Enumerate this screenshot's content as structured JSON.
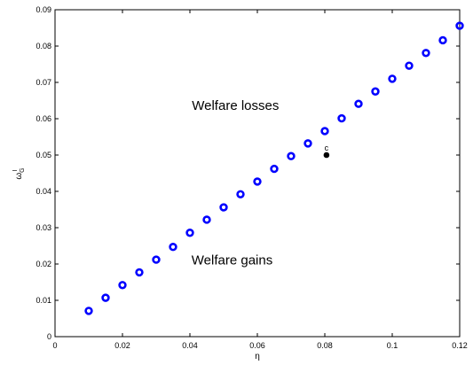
{
  "chart_data": {
    "type": "scatter",
    "title": "",
    "xlabel": "η",
    "ylabel": "ω",
    "ylabel_superscript": "I",
    "ylabel_subscript": "G",
    "xlim": [
      0,
      0.12
    ],
    "ylim": [
      0,
      0.09
    ],
    "xticks": [
      0,
      0.02,
      0.04,
      0.06,
      0.08,
      0.1,
      0.12
    ],
    "xtick_labels": [
      "0",
      "0.02",
      "0.04",
      "0.06",
      "0.08",
      "0.1",
      "0.12"
    ],
    "yticks": [
      0,
      0.01,
      0.02,
      0.03,
      0.04,
      0.05,
      0.06,
      0.07,
      0.08,
      0.09
    ],
    "ytick_labels": [
      "0",
      "0.01",
      "0.02",
      "0.03",
      "0.04",
      "0.05",
      "0.06",
      "0.07",
      "0.08",
      "0.09"
    ],
    "grid": false,
    "series": [
      {
        "color": "#0000ff",
        "marker": "open-circle",
        "x": [
          0.01,
          0.015,
          0.02,
          0.025,
          0.03,
          0.035,
          0.04,
          0.045,
          0.05,
          0.055,
          0.06,
          0.065,
          0.07,
          0.075,
          0.08,
          0.085,
          0.09,
          0.095,
          0.1,
          0.105,
          0.11,
          0.115,
          0.12
        ],
        "y": [
          0.0071,
          0.0107,
          0.0142,
          0.0177,
          0.0212,
          0.0247,
          0.0286,
          0.0322,
          0.0356,
          0.0392,
          0.0427,
          0.0462,
          0.0497,
          0.0532,
          0.0566,
          0.0601,
          0.0641,
          0.0675,
          0.071,
          0.0746,
          0.0781,
          0.0816,
          0.0856
        ]
      }
    ],
    "point": {
      "label": "c",
      "x": 0.0805,
      "y": 0.05,
      "color": "#000000"
    },
    "annotations": [
      {
        "text": "Welfare losses",
        "x": 0.0535,
        "y": 0.0637
      },
      {
        "text": "Welfare gains",
        "x": 0.0525,
        "y": 0.0211
      }
    ]
  }
}
